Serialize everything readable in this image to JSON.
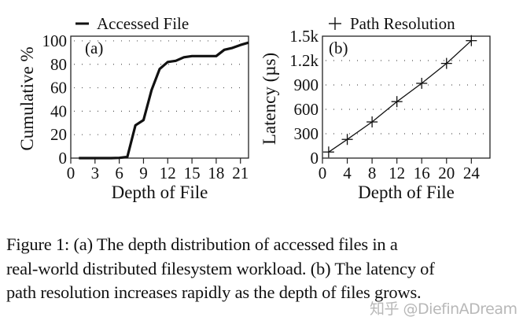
{
  "figure": {
    "caption_lines": [
      "Figure 1:  (a) The depth distribution of accessed files in a",
      "real-world distributed filesystem workload. (b) The latency of",
      "path resolution increases rapidly as the depth of files grows."
    ],
    "watermark": "知乎 @DiefinADream"
  },
  "chart_data": [
    {
      "type": "line",
      "panel_label": "(a)",
      "title": "",
      "legend": [
        {
          "name": "Accessed File",
          "marker": "line"
        }
      ],
      "legend_position": "top",
      "xlabel": "Depth of File",
      "ylabel": "Cumulative %",
      "xlim": [
        0,
        22
      ],
      "ylim": [
        0,
        104
      ],
      "xticks": [
        0,
        3,
        6,
        9,
        12,
        15,
        18,
        21
      ],
      "yticks": [
        0,
        20,
        40,
        60,
        80,
        100
      ],
      "ytick_labels": [
        "0",
        "20",
        "40",
        "60",
        "80",
        "100"
      ],
      "grid": "horizontal-dotted",
      "series": [
        {
          "name": "Accessed File",
          "x": [
            1,
            2,
            3,
            4,
            5,
            6,
            7,
            8,
            9,
            10,
            11,
            12,
            13,
            14,
            15,
            16,
            17,
            18,
            19,
            20,
            21,
            22
          ],
          "values": [
            0,
            0,
            0,
            0,
            0,
            0.2,
            1,
            28,
            32.5,
            58,
            76,
            82,
            83,
            86,
            87,
            87,
            87,
            87,
            92.4,
            94,
            96.5,
            98.5
          ]
        }
      ]
    },
    {
      "type": "line",
      "panel_label": "(b)",
      "title": "",
      "legend": [
        {
          "name": "Path Resolution",
          "marker": "plus"
        }
      ],
      "legend_position": "top",
      "xlabel": "Depth of File",
      "ylabel": "Latency (µs)",
      "xlim": [
        0,
        27
      ],
      "ylim": [
        0,
        1500
      ],
      "xticks": [
        0,
        4,
        8,
        12,
        16,
        20,
        24
      ],
      "yticks": [
        0,
        300,
        600,
        900,
        1200,
        1500
      ],
      "ytick_labels": [
        "0",
        "300",
        "600",
        "900",
        "1.2k",
        "1.5k"
      ],
      "grid": "horizontal-dotted",
      "series": [
        {
          "name": "Path Resolution",
          "x": [
            1,
            4,
            8,
            12,
            16,
            20,
            24
          ],
          "values": [
            75,
            230,
            445,
            695,
            920,
            1165,
            1445
          ]
        }
      ]
    }
  ]
}
